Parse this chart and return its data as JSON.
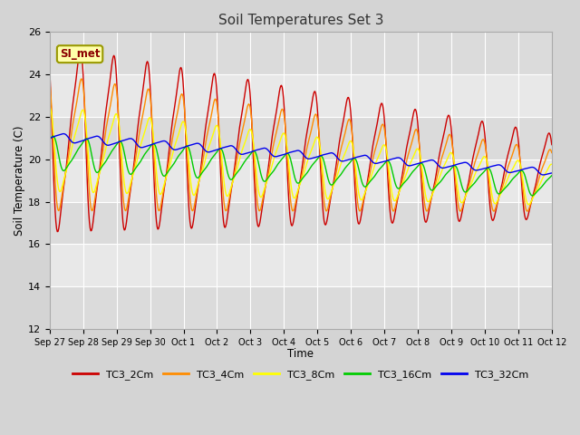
{
  "title": "Soil Temperatures Set 3",
  "xlabel": "Time",
  "ylabel": "Soil Temperature (C)",
  "ylim": [
    12,
    26
  ],
  "yticks": [
    12,
    14,
    16,
    18,
    20,
    22,
    24,
    26
  ],
  "annotation": "SI_met",
  "series_colors": {
    "TC3_2Cm": "#cc0000",
    "TC3_4Cm": "#ff8c00",
    "TC3_8Cm": "#ffff00",
    "TC3_16Cm": "#00cc00",
    "TC3_32Cm": "#0000ee"
  },
  "xtick_labels": [
    "Sep 27",
    "Sep 28",
    "Sep 29",
    "Sep 30",
    "Oct 1",
    "Oct 2",
    "Oct 3",
    "Oct 4",
    "Oct 5",
    "Oct 6",
    "Oct 7",
    "Oct 8",
    "Oct 9",
    "Oct 10",
    "Oct 11",
    "Oct 12"
  ],
  "background_color": "#e8e8e8",
  "grid_color": "#ffffff",
  "linewidth": 1.0
}
